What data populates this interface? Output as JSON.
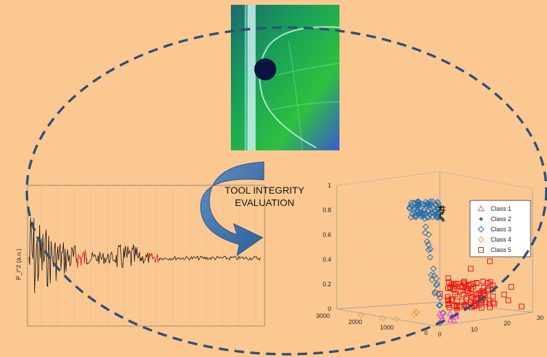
{
  "caption": {
    "line1": "TOOL INTEGRITY",
    "line2": "EVALUATION"
  },
  "signal_plot": {
    "ylabel": "P_i^2 (a.u.)"
  },
  "chart_data": {
    "type": "scatter",
    "dimensions": 3,
    "z_ticks": [
      "0",
      "0.2",
      "0.4",
      "0.6",
      "0.8",
      "1"
    ],
    "x_ticks": [
      "3000",
      "2000",
      "1000",
      "0"
    ],
    "y_ticks": [
      "0",
      "10",
      "20",
      "30"
    ],
    "zlim": [
      0,
      1
    ],
    "legend_position": "top-right",
    "series": [
      {
        "name": "Class 1",
        "marker": "triangle",
        "color": "#e040e0"
      },
      {
        "name": "Class 2",
        "marker": "plus",
        "color": "#222222"
      },
      {
        "name": "Class 3",
        "marker": "diamond",
        "color": "#1f6fb0"
      },
      {
        "name": "Class 4",
        "marker": "diamond",
        "color": "#e8a040"
      },
      {
        "name": "Class 5",
        "marker": "square",
        "color": "#e81010"
      }
    ]
  },
  "colors": {
    "background": "#fbc891",
    "ellipse": "#2f4f7a",
    "arrow": "#3a6fa8"
  }
}
